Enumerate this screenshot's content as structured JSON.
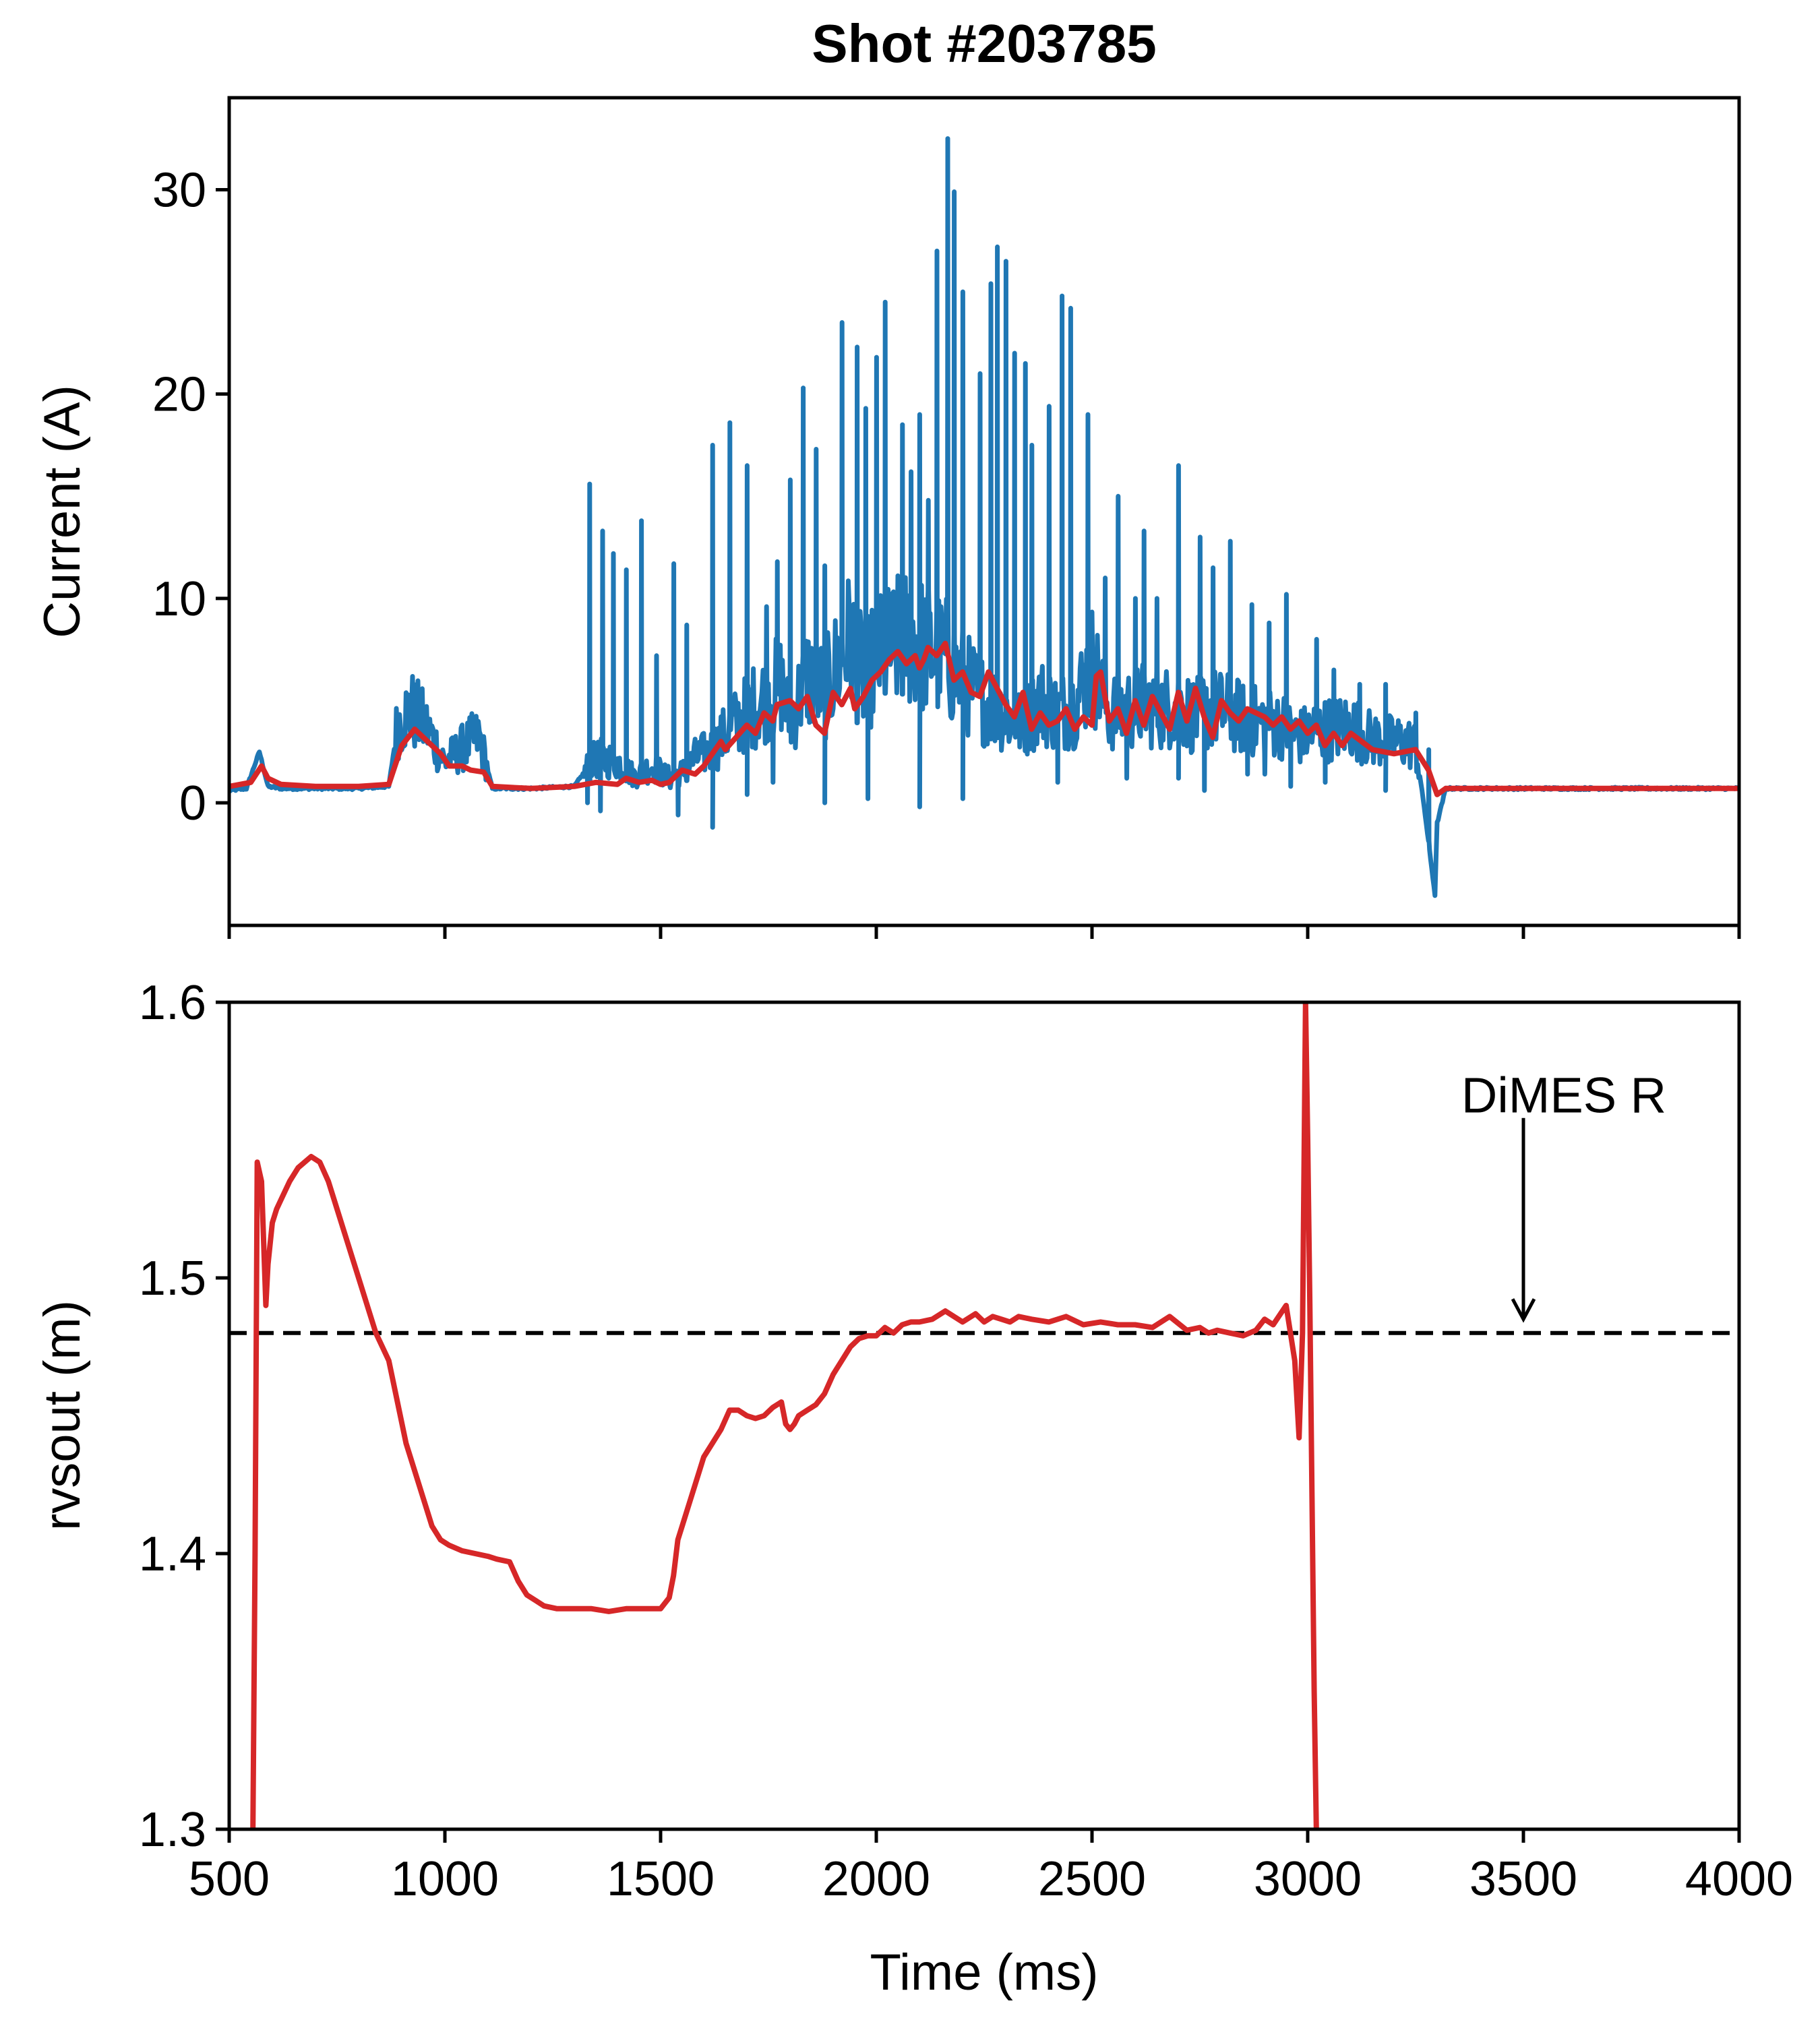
{
  "figure": {
    "title": "Shot #203785"
  },
  "chart_data": [
    {
      "type": "line",
      "ylabel": "Current (A)",
      "xlim": [
        500,
        4000
      ],
      "ylim": [
        -6,
        34.5
      ],
      "yticks": [
        0,
        10,
        20,
        30
      ],
      "series": [
        {
          "color": "#1f77b4",
          "style": "noisy",
          "x": [
            500,
            540,
            570,
            590,
            620,
            700,
            800,
            870,
            890,
            920,
            960,
            1000,
            1060,
            1080,
            1110,
            1200,
            1300,
            1340,
            1360,
            1400,
            1440,
            1480,
            1520,
            1560,
            1580,
            1620,
            1660,
            1700,
            1740,
            1780,
            1800,
            1840,
            1880,
            1910,
            1940,
            1970,
            2000,
            2040,
            2080,
            2110,
            2140,
            2165,
            2190,
            2220,
            2250,
            2280,
            2310,
            2340,
            2380,
            2420,
            2460,
            2500,
            2540,
            2580,
            2620,
            2660,
            2700,
            2740,
            2780,
            2820,
            2860,
            2900,
            2940,
            2980,
            3020,
            3060,
            3100,
            3140,
            3180,
            3220,
            3250,
            3270,
            3295,
            3300,
            3320,
            3360,
            3500,
            3700,
            4000
          ],
          "y": [
            0.6,
            0.7,
            2.5,
            0.8,
            0.7,
            0.7,
            0.7,
            0.8,
            3.8,
            4.6,
            3.6,
            2.0,
            3.0,
            3.2,
            0.7,
            0.7,
            0.8,
            2.0,
            2.2,
            2.0,
            1.3,
            1.8,
            1.2,
            1.6,
            2.2,
            2.6,
            3.6,
            4.4,
            5.2,
            5.8,
            4.0,
            6.2,
            5.4,
            6.8,
            8.0,
            6.0,
            7.0,
            7.6,
            8.2,
            7.6,
            7.2,
            7.0,
            6.2,
            5.6,
            5.0,
            4.6,
            4.2,
            3.8,
            5.0,
            4.4,
            4.8,
            6.8,
            4.4,
            4.6,
            4.8,
            4.6,
            4.8,
            4.2,
            4.6,
            4.4,
            4.0,
            4.0,
            3.8,
            3.2,
            3.6,
            3.6,
            3.8,
            3.2,
            3.0,
            3.0,
            2.8,
            -0.2,
            -4.5,
            -1.0,
            0.7,
            0.7,
            0.7,
            0.7,
            0.7
          ],
          "spikes": [
            [
              1335,
              15.6
            ],
            [
              1365,
              13.3
            ],
            [
              1390,
              12.2
            ],
            [
              1420,
              11.4
            ],
            [
              1455,
              13.8
            ],
            [
              1490,
              7.2
            ],
            [
              1530,
              11.7
            ],
            [
              1560,
              8.7
            ],
            [
              1620,
              17.5
            ],
            [
              1660,
              18.6
            ],
            [
              1700,
              16.5
            ],
            [
              1745,
              9.6
            ],
            [
              1770,
              11.8
            ],
            [
              1800,
              15.8
            ],
            [
              1830,
              20.3
            ],
            [
              1860,
              17.3
            ],
            [
              1880,
              11.6
            ],
            [
              1920,
              23.5
            ],
            [
              1955,
              22.3
            ],
            [
              1975,
              19.3
            ],
            [
              2000,
              21.8
            ],
            [
              2020,
              24.5
            ],
            [
              2060,
              18.5
            ],
            [
              2080,
              16.2
            ],
            [
              2100,
              19.0
            ],
            [
              2120,
              14.8
            ],
            [
              2140,
              27.0
            ],
            [
              2165,
              32.5
            ],
            [
              2180,
              29.9
            ],
            [
              2200,
              25.0
            ],
            [
              2240,
              21.0
            ],
            [
              2265,
              25.4
            ],
            [
              2280,
              27.2
            ],
            [
              2300,
              26.5
            ],
            [
              2320,
              22.0
            ],
            [
              2345,
              21.5
            ],
            [
              2360,
              17.5
            ],
            [
              2400,
              19.4
            ],
            [
              2430,
              24.8
            ],
            [
              2450,
              24.2
            ],
            [
              2490,
              19.0
            ],
            [
              2530,
              11.0
            ],
            [
              2560,
              15.0
            ],
            [
              2600,
              10.0
            ],
            [
              2620,
              13.3
            ],
            [
              2650,
              10.0
            ],
            [
              2700,
              16.5
            ],
            [
              2750,
              13.0
            ],
            [
              2780,
              11.5
            ],
            [
              2820,
              12.8
            ],
            [
              2870,
              9.7
            ],
            [
              2910,
              8.8
            ],
            [
              2950,
              10.2
            ],
            [
              3020,
              8.0
            ],
            [
              3060,
              6.5
            ],
            [
              3120,
              5.8
            ],
            [
              3180,
              5.8
            ],
            [
              3250,
              4.4
            ],
            [
              3280,
              2.6
            ]
          ],
          "dips": [
            [
              1330,
              0.0
            ],
            [
              1360,
              -0.4
            ],
            [
              1540,
              -0.6
            ],
            [
              1620,
              -1.2
            ],
            [
              1700,
              0.4
            ],
            [
              1760,
              1.0
            ],
            [
              1880,
              0.0
            ],
            [
              1980,
              0.2
            ],
            [
              2100,
              -0.2
            ],
            [
              2200,
              0.2
            ],
            [
              2420,
              1.0
            ],
            [
              2580,
              1.2
            ],
            [
              2700,
              1.2
            ],
            [
              2760,
              0.6
            ],
            [
              2860,
              1.4
            ],
            [
              2900,
              1.4
            ],
            [
              2960,
              0.8
            ],
            [
              3040,
              1.0
            ],
            [
              3180,
              0.6
            ]
          ]
        },
        {
          "color": "#d62728",
          "x": [
            500,
            550,
            575,
            590,
            620,
            700,
            800,
            870,
            900,
            930,
            960,
            990,
            1010,
            1040,
            1060,
            1090,
            1110,
            1200,
            1300,
            1350,
            1400,
            1420,
            1450,
            1480,
            1500,
            1520,
            1550,
            1580,
            1600,
            1620,
            1640,
            1650,
            1700,
            1720,
            1740,
            1760,
            1770,
            1800,
            1820,
            1840,
            1860,
            1880,
            1900,
            1920,
            1940,
            1950,
            1970,
            1990,
            2010,
            2030,
            2050,
            2070,
            2090,
            2100,
            2110,
            2120,
            2140,
            2160,
            2180,
            2200,
            2220,
            2240,
            2260,
            2280,
            2300,
            2320,
            2340,
            2360,
            2380,
            2400,
            2420,
            2440,
            2460,
            2480,
            2500,
            2510,
            2520,
            2540,
            2560,
            2580,
            2600,
            2620,
            2640,
            2660,
            2680,
            2700,
            2720,
            2740,
            2760,
            2780,
            2800,
            2820,
            2840,
            2860,
            2880,
            2900,
            2920,
            2940,
            2960,
            2980,
            3000,
            3020,
            3040,
            3060,
            3080,
            3100,
            3150,
            3200,
            3250,
            3280,
            3300,
            3320,
            3400,
            4000
          ],
          "y": [
            0.8,
            1.0,
            1.8,
            1.2,
            0.9,
            0.8,
            0.8,
            0.9,
            2.8,
            3.6,
            3.0,
            2.4,
            1.8,
            1.8,
            1.6,
            1.5,
            0.8,
            0.7,
            0.8,
            1.0,
            0.9,
            1.2,
            1.0,
            1.1,
            0.9,
            1.0,
            1.6,
            1.4,
            1.8,
            2.4,
            3.0,
            2.6,
            3.8,
            3.4,
            4.4,
            4.0,
            4.8,
            5.0,
            4.6,
            5.2,
            3.8,
            3.4,
            5.4,
            4.8,
            5.6,
            4.6,
            5.2,
            6.0,
            6.4,
            7.0,
            7.4,
            6.8,
            7.2,
            6.6,
            7.0,
            7.6,
            7.2,
            7.8,
            6.0,
            6.4,
            5.4,
            5.2,
            6.4,
            5.6,
            4.8,
            4.2,
            5.4,
            3.6,
            4.4,
            3.8,
            4.0,
            4.6,
            3.6,
            4.2,
            3.8,
            6.2,
            6.4,
            4.0,
            4.6,
            3.4,
            5.0,
            3.8,
            5.2,
            4.4,
            3.6,
            5.4,
            4.0,
            5.6,
            4.2,
            3.2,
            5.0,
            4.4,
            4.0,
            4.6,
            4.4,
            4.2,
            3.8,
            4.2,
            3.6,
            4.0,
            3.4,
            3.8,
            2.8,
            3.4,
            2.8,
            3.4,
            2.6,
            2.4,
            2.6,
            1.6,
            0.4,
            0.7,
            0.7,
            0.7
          ]
        }
      ]
    },
    {
      "type": "line",
      "xlabel": "Time (ms)",
      "ylabel": "rvsout (m)",
      "xlim": [
        500,
        4000
      ],
      "ylim": [
        1.3,
        1.6
      ],
      "xticks": [
        500,
        1000,
        1500,
        2000,
        2500,
        3000,
        3500,
        4000
      ],
      "yticks": [
        1.3,
        1.4,
        1.5,
        1.6
      ],
      "series": [
        {
          "color": "#d62728",
          "x": [
            555,
            560,
            565,
            575,
            585,
            590,
            600,
            610,
            625,
            640,
            660,
            690,
            710,
            730,
            750,
            770,
            790,
            810,
            840,
            870,
            890,
            910,
            930,
            950,
            970,
            990,
            1010,
            1040,
            1070,
            1100,
            1120,
            1150,
            1170,
            1190,
            1210,
            1230,
            1260,
            1300,
            1340,
            1380,
            1420,
            1460,
            1500,
            1520,
            1530,
            1540,
            1560,
            1580,
            1600,
            1620,
            1640,
            1660,
            1680,
            1700,
            1720,
            1740,
            1760,
            1780,
            1790,
            1800,
            1810,
            1820,
            1840,
            1860,
            1880,
            1900,
            1920,
            1940,
            1960,
            1980,
            2000,
            2020,
            2040,
            2060,
            2080,
            2100,
            2130,
            2160,
            2200,
            2230,
            2250,
            2270,
            2290,
            2310,
            2330,
            2360,
            2400,
            2440,
            2480,
            2520,
            2560,
            2600,
            2640,
            2680,
            2720,
            2750,
            2770,
            2790,
            2820,
            2850,
            2880,
            2900,
            2920,
            2950,
            2970,
            2980,
            2988,
            2995,
            3000,
            3005,
            3010,
            3015,
            3020,
            3025
          ],
          "y": [
            1.3,
            1.4,
            1.542,
            1.535,
            1.49,
            1.505,
            1.52,
            1.525,
            1.53,
            1.535,
            1.54,
            1.544,
            1.542,
            1.535,
            1.525,
            1.515,
            1.505,
            1.495,
            1.48,
            1.47,
            1.455,
            1.44,
            1.43,
            1.42,
            1.41,
            1.405,
            1.403,
            1.401,
            1.4,
            1.399,
            1.398,
            1.397,
            1.39,
            1.385,
            1.383,
            1.381,
            1.38,
            1.38,
            1.38,
            1.379,
            1.38,
            1.38,
            1.38,
            1.384,
            1.392,
            1.405,
            1.415,
            1.425,
            1.435,
            1.44,
            1.445,
            1.452,
            1.452,
            1.45,
            1.449,
            1.45,
            1.453,
            1.455,
            1.447,
            1.445,
            1.447,
            1.45,
            1.452,
            1.454,
            1.458,
            1.465,
            1.47,
            1.475,
            1.478,
            1.479,
            1.479,
            1.482,
            1.48,
            1.483,
            1.484,
            1.484,
            1.485,
            1.488,
            1.484,
            1.487,
            1.484,
            1.486,
            1.485,
            1.484,
            1.486,
            1.485,
            1.484,
            1.486,
            1.483,
            1.484,
            1.483,
            1.483,
            1.482,
            1.486,
            1.481,
            1.482,
            1.48,
            1.481,
            1.48,
            1.479,
            1.481,
            1.485,
            1.483,
            1.49,
            1.47,
            1.442,
            1.48,
            1.6,
            1.55,
            1.49,
            1.42,
            1.35,
            1.3,
            1.3
          ]
        }
      ],
      "hline": {
        "y": 1.48,
        "style": "dashed",
        "color": "#000000"
      },
      "annotation": {
        "text": "DiMES R",
        "x": 3500,
        "arrow_to_y": 1.485
      }
    }
  ]
}
